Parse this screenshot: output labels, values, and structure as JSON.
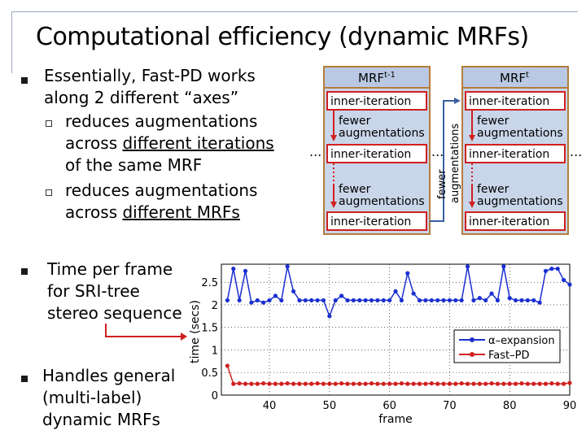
{
  "slide": {
    "title": "Computational efficiency (dynamic MRFs)",
    "bullet1": {
      "line1": "Essentially, Fast-PD works",
      "line2": "along 2 different “axes”",
      "sub1": {
        "line1": "reduces augmentations",
        "line2_prefix": "across ",
        "line2_underlined": "different iterations",
        "line3": "of the same MRF"
      },
      "sub2": {
        "line1": "reduces augmentations",
        "line2_prefix": "across ",
        "line2_underlined": "different MRFs"
      }
    },
    "bullet2": {
      "line1": "Time per frame",
      "line2": "for SRI-tree",
      "line3": "stereo sequence"
    },
    "bullet3": {
      "line1": "Handles general",
      "line2": "(multi-label)",
      "line3": "dynamic MRFs"
    }
  },
  "diagram": {
    "left_header_base": "MRF",
    "left_header_sup": "t-1",
    "right_header_base": "MRF",
    "right_header_sup": "t",
    "iteration_label": "inner-iteration",
    "fewer_line1": "fewer",
    "fewer_line2": "augmentations",
    "vertical_line1": "fewer",
    "vertical_line2": "augmentations",
    "ellipsis": "...",
    "colors": {
      "panel_fill": "#c9d6ea",
      "panel_border": "#b57d3a",
      "arrow": "#d02020",
      "arrow_between": "#3a5fa0"
    }
  },
  "chart_data": {
    "type": "line",
    "xlabel": "frame",
    "ylabel": "time (secs)",
    "xlim": [
      32,
      90
    ],
    "ylim": [
      0,
      2.9
    ],
    "xticks": [
      40,
      50,
      60,
      70,
      80,
      90
    ],
    "yticks": [
      0,
      0.5,
      1,
      1.5,
      2,
      2.5
    ],
    "ytick_labels": [
      "0",
      "0.5",
      "1",
      "1.5",
      "2",
      "2.5"
    ],
    "legend_position": "right",
    "series": [
      {
        "name": "α–expansion",
        "color": "#1a2fd0",
        "x": [
          33,
          34,
          35,
          36,
          37,
          38,
          39,
          40,
          41,
          42,
          43,
          44,
          45,
          46,
          47,
          48,
          49,
          50,
          51,
          52,
          53,
          54,
          55,
          56,
          57,
          58,
          59,
          60,
          61,
          62,
          63,
          64,
          65,
          66,
          67,
          68,
          69,
          70,
          71,
          72,
          73,
          74,
          75,
          76,
          77,
          78,
          79,
          80,
          81,
          82,
          83,
          84,
          85,
          86,
          87,
          88,
          89,
          90
        ],
        "values": [
          2.1,
          2.8,
          2.1,
          2.75,
          2.05,
          2.1,
          2.05,
          2.1,
          2.2,
          2.1,
          2.85,
          2.3,
          2.1,
          2.1,
          2.1,
          2.1,
          2.1,
          1.75,
          2.1,
          2.2,
          2.1,
          2.1,
          2.1,
          2.1,
          2.1,
          2.1,
          2.1,
          2.1,
          2.3,
          2.1,
          2.7,
          2.25,
          2.1,
          2.1,
          2.1,
          2.1,
          2.1,
          2.1,
          2.1,
          2.1,
          2.85,
          2.1,
          2.15,
          2.1,
          2.25,
          2.1,
          2.85,
          2.15,
          2.1,
          2.1,
          2.1,
          2.1,
          2.05,
          2.75,
          2.8,
          2.8,
          2.55,
          2.45
        ]
      },
      {
        "name": "Fast–PD",
        "color": "#d02020",
        "x": [
          33,
          34,
          35,
          36,
          37,
          38,
          39,
          40,
          41,
          42,
          43,
          44,
          45,
          46,
          47,
          48,
          49,
          50,
          51,
          52,
          53,
          54,
          55,
          56,
          57,
          58,
          59,
          60,
          61,
          62,
          63,
          64,
          65,
          66,
          67,
          68,
          69,
          70,
          71,
          72,
          73,
          74,
          75,
          76,
          77,
          78,
          79,
          80,
          81,
          82,
          83,
          84,
          85,
          86,
          87,
          88,
          89,
          90
        ],
        "values": [
          0.65,
          0.25,
          0.26,
          0.25,
          0.25,
          0.25,
          0.26,
          0.25,
          0.25,
          0.25,
          0.26,
          0.25,
          0.25,
          0.25,
          0.25,
          0.26,
          0.25,
          0.25,
          0.25,
          0.26,
          0.25,
          0.25,
          0.25,
          0.25,
          0.26,
          0.25,
          0.25,
          0.25,
          0.25,
          0.26,
          0.25,
          0.25,
          0.25,
          0.25,
          0.26,
          0.25,
          0.25,
          0.25,
          0.25,
          0.26,
          0.25,
          0.25,
          0.25,
          0.25,
          0.26,
          0.25,
          0.25,
          0.25,
          0.25,
          0.26,
          0.25,
          0.25,
          0.25,
          0.25,
          0.26,
          0.25,
          0.25,
          0.27
        ]
      }
    ]
  }
}
